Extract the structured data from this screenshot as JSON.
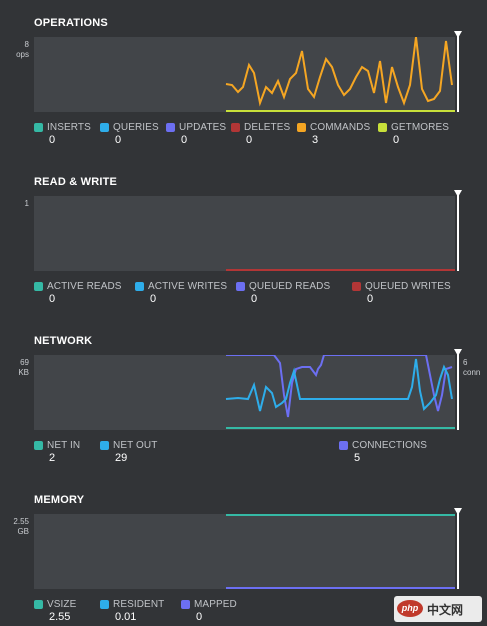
{
  "colors": {
    "background": "#323437",
    "plot_background": "#424549",
    "teal": "#35b9a5",
    "blue": "#2eadea",
    "violet": "#6c6ff2",
    "red": "#b23636",
    "orange": "#f5a623",
    "lime": "#c8e03a"
  },
  "operations": {
    "title": "OPERATIONS",
    "y_max_value": "8",
    "y_unit": "ops",
    "legend": [
      {
        "label": "INSERTS",
        "value": "0",
        "color": "#35b9a5"
      },
      {
        "label": "QUERIES",
        "value": "0",
        "color": "#2eadea"
      },
      {
        "label": "UPDATES",
        "value": "0",
        "color": "#6c6ff2"
      },
      {
        "label": "DELETES",
        "value": "0",
        "color": "#b23636"
      },
      {
        "label": "COMMANDS",
        "value": "3",
        "color": "#f5a623"
      },
      {
        "label": "GETMORES",
        "value": "0",
        "color": "#c8e03a"
      }
    ]
  },
  "read_write": {
    "title": "READ & WRITE",
    "y_max_value": "1",
    "legend": [
      {
        "label": "ACTIVE READS",
        "value": "0",
        "color": "#35b9a5"
      },
      {
        "label": "ACTIVE WRITES",
        "value": "0",
        "color": "#2eadea"
      },
      {
        "label": "QUEUED READS",
        "value": "0",
        "color": "#6c6ff2"
      },
      {
        "label": "QUEUED WRITES",
        "value": "0",
        "color": "#b23636"
      }
    ]
  },
  "network": {
    "title": "NETWORK",
    "y_max_value": "69",
    "y_unit": "KB",
    "y2_max_value": "6",
    "y2_unit": "conn",
    "legend": [
      {
        "label": "NET IN",
        "value": "2",
        "color": "#35b9a5"
      },
      {
        "label": "NET OUT",
        "value": "29",
        "color": "#2eadea"
      },
      {
        "label": "CONNECTIONS",
        "value": "5",
        "color": "#6c6ff2"
      }
    ]
  },
  "memory": {
    "title": "MEMORY",
    "y_max_value": "2.55",
    "y_unit": "GB",
    "legend": [
      {
        "label": "VSIZE",
        "value": "2.55",
        "color": "#35b9a5"
      },
      {
        "label": "RESIDENT",
        "value": "0.01",
        "color": "#2eadea"
      },
      {
        "label": "MAPPED",
        "value": "0",
        "color": "#6c6ff2"
      }
    ]
  },
  "watermark": {
    "logo": "php",
    "text": "中文网"
  }
}
